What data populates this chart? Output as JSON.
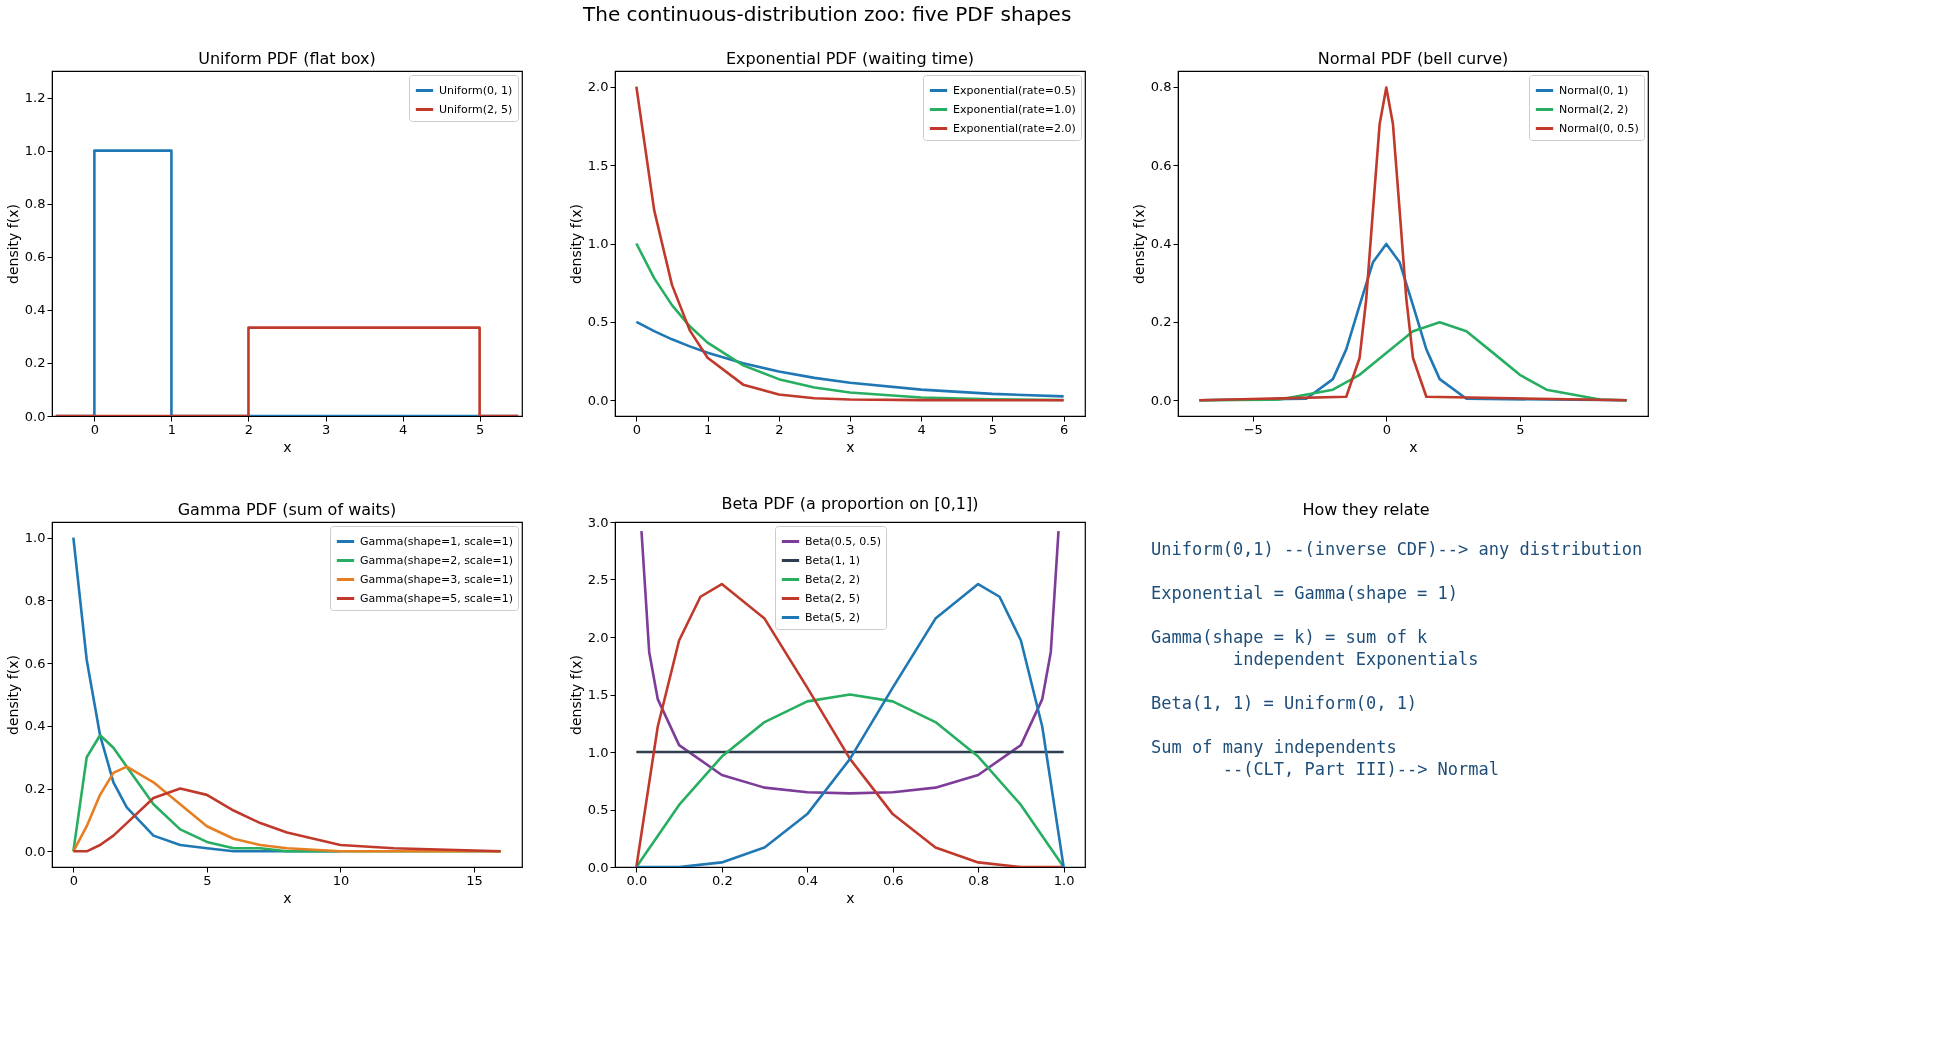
{
  "chart_data": [
    {
      "type": "other",
      "title": "The continuous-distribution zoo: five PDF shapes"
    },
    {
      "type": "line",
      "title": "Uniform PDF  (flat box)",
      "xlabel": "x",
      "ylabel": "density f(x)",
      "xlim": [
        -0.55,
        5.55
      ],
      "ylim": [
        0,
        1.3
      ],
      "xticks": [
        0,
        1,
        2,
        3,
        4,
        5
      ],
      "yticks": [
        {
          "value": 0,
          "label": "0.0"
        },
        0.2,
        0.4,
        0.6,
        0.8,
        {
          "value": 1,
          "label": "1.0"
        },
        1.2
      ],
      "legend": "top right",
      "grid": false,
      "series": [
        {
          "name": "Uniform(0, 1)",
          "color": "#1f77b4",
          "x": [
            -0.5,
            0,
            0,
            1,
            1,
            5.5
          ],
          "values": [
            0,
            0,
            1,
            1,
            0,
            0
          ]
        },
        {
          "name": "Uniform(2, 5)",
          "color": "#c0392b",
          "x": [
            -0.5,
            2,
            2,
            5,
            5,
            5.5
          ],
          "values": [
            0,
            0,
            0.333,
            0.333,
            0,
            0
          ]
        }
      ]
    },
    {
      "type": "line",
      "title": "Exponential PDF  (waiting time)",
      "xlabel": "x",
      "ylabel": "density f(x)",
      "xlim": [
        -0.3,
        6.3
      ],
      "ylim": [
        -0.1,
        2.1
      ],
      "xticks": [
        0,
        1,
        2,
        3,
        4,
        5,
        6
      ],
      "yticks": [
        {
          "value": 0,
          "label": "0.0"
        },
        0.5,
        {
          "value": 1,
          "label": "1.0"
        },
        1.5,
        {
          "value": 2,
          "label": "2.0"
        }
      ],
      "legend": "top right",
      "grid": false,
      "x": [
        0,
        0.25,
        0.5,
        0.75,
        1,
        1.5,
        2,
        2.5,
        3,
        4,
        5,
        6
      ],
      "series": [
        {
          "name": "Exponential(rate=0.5)",
          "color": "#1f77b4",
          "values": [
            0.5,
            0.441,
            0.389,
            0.344,
            0.303,
            0.236,
            0.184,
            0.143,
            0.112,
            0.068,
            0.041,
            0.025
          ]
        },
        {
          "name": "Exponential(rate=1.0)",
          "color": "#27ae60",
          "values": [
            1,
            0.779,
            0.607,
            0.472,
            0.368,
            0.223,
            0.135,
            0.082,
            0.05,
            0.018,
            0.007,
            0.002
          ]
        },
        {
          "name": "Exponential(rate=2.0)",
          "color": "#c0392b",
          "values": [
            2,
            1.213,
            0.736,
            0.446,
            0.271,
            0.1,
            0.037,
            0.013,
            0.005,
            0.001,
            0,
            0
          ]
        }
      ]
    },
    {
      "type": "line",
      "title": "Normal PDF  (bell curve)",
      "xlabel": "x",
      "ylabel": "density f(x)",
      "xlim": [
        -7.8,
        9.8
      ],
      "ylim": [
        -0.04,
        0.84
      ],
      "xticks": [
        {
          "value": -5,
          "label": "−5"
        },
        0,
        5
      ],
      "yticks": [
        {
          "value": 0,
          "label": "0.0"
        },
        0.2,
        0.4,
        0.6,
        0.8
      ],
      "legend": "top right",
      "grid": false,
      "series": [
        {
          "name": "Normal(0, 1)",
          "color": "#1f77b4",
          "x": [
            -7,
            -3,
            -2,
            -1.5,
            -1,
            -0.5,
            0,
            0.5,
            1,
            1.5,
            2,
            3,
            9
          ],
          "values": [
            0,
            0.004,
            0.054,
            0.13,
            0.242,
            0.352,
            0.399,
            0.352,
            0.242,
            0.13,
            0.054,
            0.004,
            0
          ]
        },
        {
          "name": "Normal(2, 2)",
          "color": "#27ae60",
          "x": [
            -7,
            -4,
            -2,
            -1,
            0,
            1,
            2,
            3,
            4,
            5,
            6,
            8,
            9
          ],
          "values": [
            0,
            0.002,
            0.027,
            0.065,
            0.121,
            0.176,
            0.199,
            0.176,
            0.121,
            0.065,
            0.027,
            0.002,
            0
          ]
        },
        {
          "name": "Normal(0, 0.5)",
          "color": "#c0392b",
          "x": [
            -7,
            -1.5,
            -1,
            -0.75,
            -0.5,
            -0.25,
            0,
            0.25,
            0.5,
            0.75,
            1,
            1.5,
            9
          ],
          "values": [
            0,
            0.009,
            0.108,
            0.259,
            0.484,
            0.704,
            0.798,
            0.704,
            0.484,
            0.259,
            0.108,
            0.009,
            0
          ]
        }
      ]
    },
    {
      "type": "line",
      "title": "Gamma PDF  (sum of waits)",
      "xlabel": "x",
      "ylabel": "density f(x)",
      "xlim": [
        -0.8,
        16.8
      ],
      "ylim": [
        -0.05,
        1.05
      ],
      "xticks": [
        0,
        5,
        10,
        15
      ],
      "yticks": [
        {
          "value": 0,
          "label": "0.0"
        },
        0.2,
        0.4,
        0.6,
        0.8,
        {
          "value": 1,
          "label": "1.0"
        }
      ],
      "legend": "top right",
      "grid": false,
      "x": [
        0,
        0.5,
        1,
        1.5,
        2,
        3,
        4,
        5,
        6,
        7,
        8,
        10,
        12,
        16
      ],
      "series": [
        {
          "name": "Gamma(shape=1, scale=1)",
          "color": "#1f77b4",
          "values": [
            1,
            0.61,
            0.37,
            0.22,
            0.14,
            0.05,
            0.02,
            0.01,
            0,
            0,
            0,
            0,
            null,
            null
          ]
        },
        {
          "name": "Gamma(shape=2, scale=1)",
          "color": "#27ae60",
          "values": [
            0,
            0.3,
            0.37,
            0.33,
            0.27,
            0.15,
            0.07,
            0.03,
            0.01,
            0.01,
            0,
            0,
            0,
            0
          ]
        },
        {
          "name": "Gamma(shape=3, scale=1)",
          "color": "#e67e22",
          "values": [
            0,
            0.08,
            0.18,
            0.25,
            0.27,
            0.22,
            0.15,
            0.08,
            0.04,
            0.02,
            0.01,
            0,
            0,
            0
          ]
        },
        {
          "name": "Gamma(shape=5, scale=1)",
          "color": "#c0392b",
          "values": [
            0,
            0,
            0.02,
            0.05,
            0.09,
            0.17,
            0.2,
            0.18,
            0.13,
            0.09,
            0.06,
            0.02,
            0.01,
            0
          ]
        }
      ]
    },
    {
      "type": "line",
      "title": "Beta PDF  (a proportion on [0,1])",
      "xlabel": "x",
      "ylabel": "density f(x)",
      "xlim": [
        -0.05,
        1.05
      ],
      "ylim": [
        0,
        3
      ],
      "xticks": [
        {
          "value": 0,
          "label": "0.0"
        },
        0.2,
        0.4,
        0.6,
        0.8,
        {
          "value": 1,
          "label": "1.0"
        }
      ],
      "yticks": [
        {
          "value": 0,
          "label": "0.0"
        },
        0.5,
        {
          "value": 1,
          "label": "1.0"
        },
        1.5,
        {
          "value": 2,
          "label": "2.0"
        },
        2.5,
        {
          "value": 3,
          "label": "3.0"
        }
      ],
      "legend": "top",
      "grid": false,
      "series": [
        {
          "name": "Beta(0.5, 0.5)",
          "color": "#7d3c98",
          "x": [
            0.012,
            0.03,
            0.05,
            0.1,
            0.2,
            0.3,
            0.4,
            0.5,
            0.6,
            0.7,
            0.8,
            0.9,
            0.95,
            0.97,
            0.988
          ],
          "values": [
            2.92,
            1.87,
            1.46,
            1.06,
            0.8,
            0.69,
            0.65,
            0.64,
            0.65,
            0.69,
            0.8,
            1.06,
            1.46,
            1.87,
            2.92
          ]
        },
        {
          "name": "Beta(1, 1)",
          "color": "#2c3e50",
          "x": [
            0,
            1
          ],
          "values": [
            1,
            1
          ]
        },
        {
          "name": "Beta(2, 2)",
          "color": "#27ae60",
          "x": [
            0,
            0.1,
            0.2,
            0.3,
            0.4,
            0.5,
            0.6,
            0.7,
            0.8,
            0.9,
            1
          ],
          "values": [
            0,
            0.54,
            0.96,
            1.26,
            1.44,
            1.5,
            1.44,
            1.26,
            0.96,
            0.54,
            0
          ]
        },
        {
          "name": "Beta(2, 5)",
          "color": "#c0392b",
          "x": [
            0,
            0.05,
            0.1,
            0.15,
            0.2,
            0.3,
            0.4,
            0.5,
            0.6,
            0.7,
            0.8,
            0.9,
            1
          ],
          "values": [
            0,
            1.22,
            1.97,
            2.35,
            2.46,
            2.16,
            1.56,
            0.94,
            0.46,
            0.17,
            0.04,
            0,
            0
          ]
        },
        {
          "name": "Beta(5, 2)",
          "color": "#1f77b4",
          "x": [
            0,
            0.1,
            0.2,
            0.3,
            0.4,
            0.5,
            0.6,
            0.7,
            0.8,
            0.85,
            0.9,
            0.95,
            1
          ],
          "values": [
            0,
            0,
            0.04,
            0.17,
            0.46,
            0.94,
            1.56,
            2.16,
            2.46,
            2.35,
            1.97,
            1.22,
            0
          ]
        }
      ]
    },
    {
      "type": "other",
      "title": "How they relate",
      "annotations": [
        "Uniform(0,1) --(inverse CDF)--> any distribution",
        "Exponential = Gamma(shape = 1)",
        "Gamma(shape = k) = sum of k\n        independent Exponentials",
        "Beta(1, 1) = Uniform(0, 1)",
        "Sum of many independents\n       --(CLT, Part III)--> Normal"
      ]
    }
  ]
}
